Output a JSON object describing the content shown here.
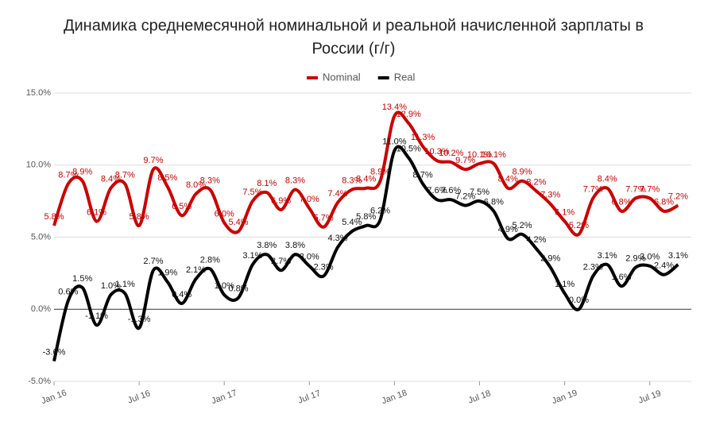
{
  "chart_data": {
    "type": "line",
    "title": "Динамика среднемесячной номинальной и реальной начисленной зарплаты в России (г/г)",
    "categories": [
      "Jan 16",
      null,
      null,
      null,
      null,
      null,
      "Jul 16",
      null,
      null,
      null,
      null,
      null,
      "Jan 17",
      null,
      null,
      null,
      null,
      null,
      "Jul 17",
      null,
      null,
      null,
      null,
      null,
      "Jan 18",
      null,
      null,
      null,
      null,
      null,
      "Jul 18",
      null,
      null,
      null,
      null,
      null,
      "Jan 19",
      null,
      null,
      null,
      null,
      null,
      "Jul 19",
      null,
      null
    ],
    "series": [
      {
        "name": "Nominal",
        "color": "#cc0000",
        "values": [
          5.8,
          8.7,
          8.9,
          6.1,
          8.4,
          8.7,
          5.8,
          9.7,
          8.5,
          6.5,
          8.0,
          8.3,
          6.0,
          5.4,
          7.5,
          8.1,
          6.9,
          8.3,
          7.0,
          5.7,
          7.4,
          8.3,
          8.4,
          8.9,
          13.4,
          12.9,
          11.3,
          10.3,
          10.2,
          9.7,
          10.1,
          10.1,
          8.4,
          8.9,
          8.2,
          7.3,
          6.1,
          5.2,
          7.7,
          8.4,
          6.8,
          7.7,
          7.7,
          6.8,
          7.2
        ],
        "value_labels": [
          "5.8%",
          "8.7%",
          "8.9%",
          "6.1%",
          "8.4%",
          "8.7%",
          "5.8%",
          "9.7%",
          "8.5%",
          "6.5%",
          "8.0%",
          "8.3%",
          "6.0%",
          "5.4%",
          "7.5%",
          "8.1%",
          "6.9%",
          "8.3%",
          "7.0%",
          "5.7%",
          "7.4%",
          "8.3%",
          "8.4%",
          "8.9%",
          "13.4%",
          "12.9%",
          "11.3%",
          "10.3%",
          "10.2%",
          "9.7%",
          "10.1%",
          "10.1%",
          "8.4%",
          "8.9%",
          "8.2%",
          "7.3%",
          "6.1%",
          "5.2%",
          "7.7%",
          "8.4%",
          "6.8%",
          "7.7%",
          "7.7%",
          "6.8%",
          "7.2%"
        ]
      },
      {
        "name": "Real",
        "color": "#000000",
        "values": [
          -3.6,
          0.6,
          1.5,
          -1.1,
          1.0,
          1.1,
          -1.3,
          2.7,
          1.9,
          0.4,
          2.1,
          2.8,
          1.0,
          0.8,
          3.1,
          3.8,
          2.7,
          3.8,
          3.0,
          2.3,
          4.3,
          5.4,
          5.8,
          6.2,
          11.0,
          10.5,
          8.7,
          7.6,
          7.6,
          7.2,
          7.5,
          6.8,
          4.9,
          5.2,
          4.2,
          2.9,
          1.1,
          0.0,
          2.3,
          3.1,
          1.6,
          2.9,
          3.0,
          2.4,
          3.1
        ],
        "value_labels": [
          "-3.6%",
          "0.6%",
          "1.5%",
          "-1.1%",
          "1.0%",
          "1.1%",
          "-1.3%",
          "2.7%",
          "1.9%",
          "0.4%",
          "2.1%",
          "2.8%",
          "1.0%",
          "0.8%",
          "3.1%",
          "3.8%",
          "2.7%",
          "3.8%",
          "3.0%",
          "2.3%",
          "4.3%",
          "5.4%",
          "5.8%",
          "6.2%",
          "11.0%",
          "10.5%",
          "8.7%",
          "7.6%",
          "7.6%",
          "7.2%",
          "7.5%",
          "6.8%",
          "4.9%",
          "5.2%",
          "4.2%",
          "2.9%",
          "1.1%",
          "0.0%",
          "2.3%",
          "3.1%",
          "1.6%",
          "2.9%",
          "3.0%",
          "2.4%",
          "3.1%"
        ]
      }
    ],
    "ylim": [
      -5,
      15
    ],
    "yticks": [
      {
        "value": -5,
        "label": "-5.0%"
      },
      {
        "value": 0,
        "label": "0.0%"
      },
      {
        "value": 5,
        "label": "5.0%"
      },
      {
        "value": 10,
        "label": "10.0%"
      },
      {
        "value": 15,
        "label": "15.0%"
      }
    ],
    "grid": true,
    "legend": "top"
  }
}
